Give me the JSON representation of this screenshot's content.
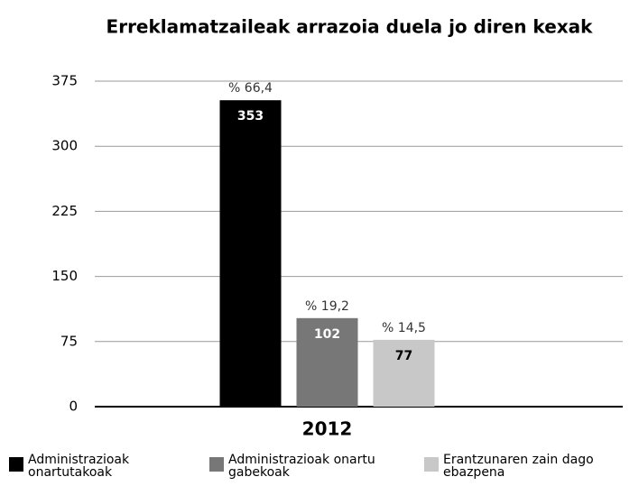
{
  "chart_data": {
    "type": "bar",
    "title": "Erreklamatzaileak arrazoia duela jo diren kexak",
    "categories": [
      "2012"
    ],
    "series": [
      {
        "name": "Administrazioak onartutakoak",
        "color": "#000000",
        "values": [
          353
        ],
        "annotations": [
          "% 66,4"
        ]
      },
      {
        "name": "Administrazioak onartu gabekoak",
        "color": "#777777",
        "values": [
          102
        ],
        "annotations": [
          "% 19,2"
        ]
      },
      {
        "name": "Erantzunaren zain dago ebazpena",
        "color": "#c8c8c8",
        "values": [
          77
        ],
        "annotations": [
          "% 14,5"
        ]
      }
    ],
    "ylim": [
      0,
      375
    ],
    "yticks": [
      0,
      75,
      150,
      225,
      300,
      375
    ],
    "grid": true,
    "legend": "bottom"
  }
}
